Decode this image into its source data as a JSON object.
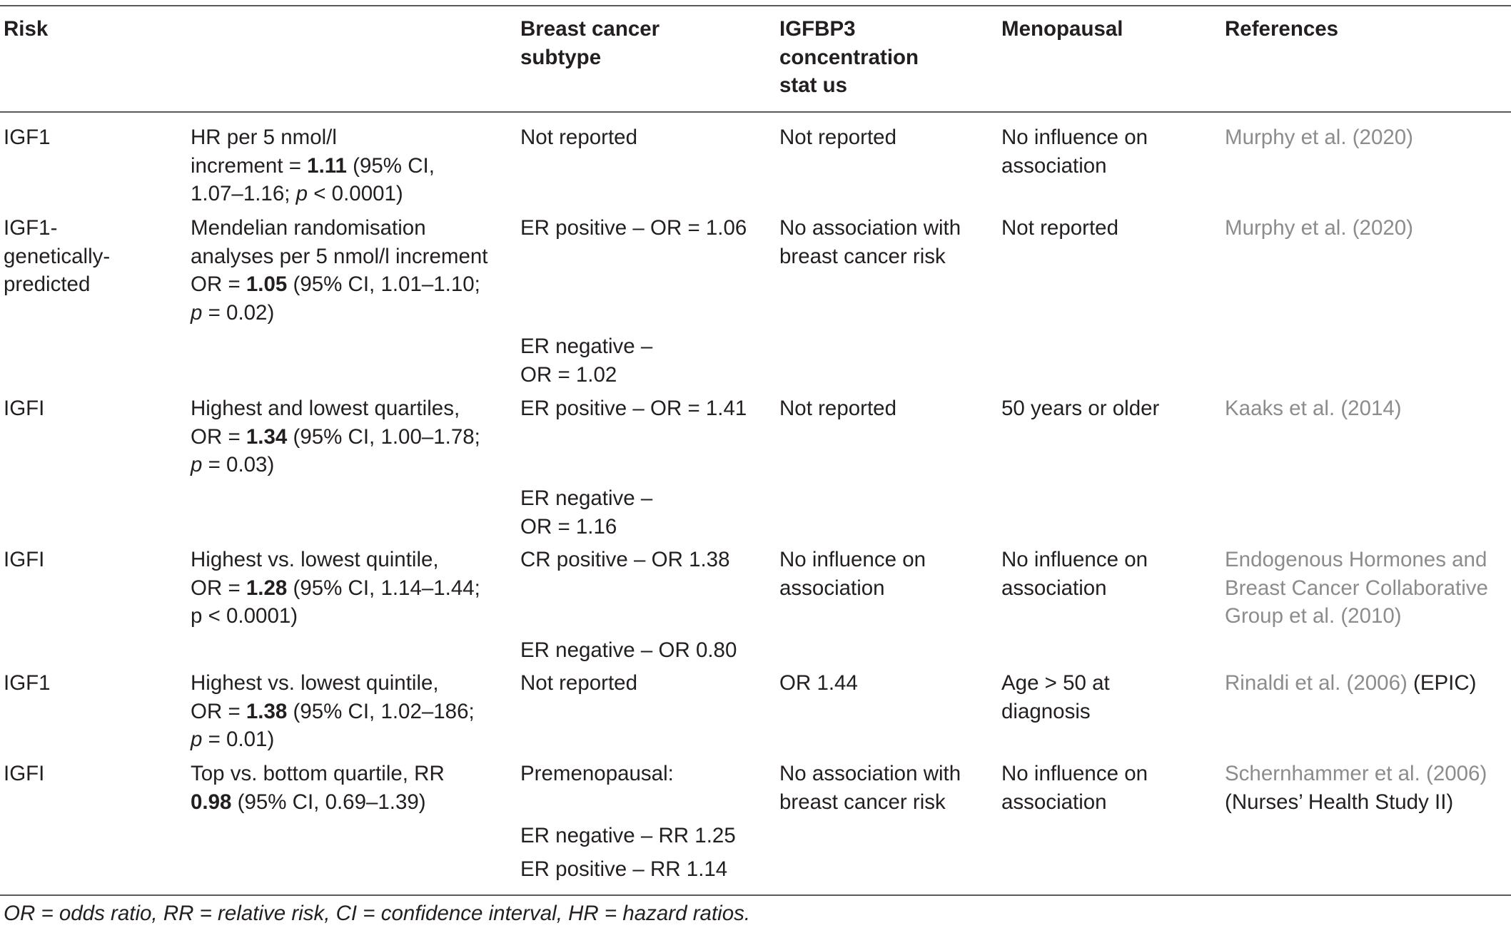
{
  "header": {
    "risk": [
      "Risk"
    ],
    "subtype": [
      "Breast cancer",
      "subtype"
    ],
    "igfbp3": [
      "IGFBP3",
      "concentration",
      "stat us"
    ],
    "menopausal": [
      "Menopausal"
    ],
    "references": [
      "References"
    ]
  },
  "rows": [
    {
      "risk": [
        "IGF1"
      ],
      "measure": [
        [
          "HR per 5 nmol/l",
          "",
          ""
        ],
        [
          "increment = ",
          "1.11",
          " (95% CI,"
        ],
        [
          "1.07–1.16; ",
          "p",
          " < 0.0001)"
        ]
      ],
      "subtype": [
        [
          "Not reported"
        ]
      ],
      "igfbp3": [
        "Not reported"
      ],
      "menopausal": [
        "No influence on",
        "association"
      ],
      "references": [
        [
          "Murphy et al. (2020)",
          ""
        ]
      ]
    },
    {
      "risk": [
        "IGF1-",
        "genetically-",
        "predicted"
      ],
      "measure": [
        [
          "Mendelian randomisation",
          "",
          ""
        ],
        [
          "analyses per 5 nmol/l increment",
          "",
          ""
        ],
        [
          "OR = ",
          "1.05",
          " (95% CI, 1.01–1.10;"
        ],
        [
          "",
          "p",
          " = 0.02)"
        ]
      ],
      "subtype": [
        [
          "ER positive – OR = 1.06"
        ],
        [
          "ER negative –",
          "OR = 1.02"
        ]
      ],
      "igfbp3": [
        "No association with",
        "breast cancer risk"
      ],
      "menopausal": [
        "Not reported"
      ],
      "references": [
        [
          "Murphy et al. (2020)",
          ""
        ]
      ]
    },
    {
      "risk": [
        "IGFI"
      ],
      "measure": [
        [
          "Highest and lowest quartiles,",
          "",
          ""
        ],
        [
          "OR = ",
          "1.34",
          " (95% CI, 1.00–1.78;"
        ],
        [
          "",
          "p",
          " = 0.03)"
        ]
      ],
      "subtype": [
        [
          "ER positive – OR = 1.41"
        ],
        [
          "ER negative –",
          "OR = 1.16"
        ]
      ],
      "igfbp3": [
        "Not reported"
      ],
      "menopausal": [
        "50 years or older"
      ],
      "references": [
        [
          "Kaaks et al. (2014)",
          ""
        ]
      ]
    },
    {
      "risk": [
        "IGFI"
      ],
      "measure": [
        [
          "Highest vs. lowest quintile,",
          "",
          ""
        ],
        [
          "OR = ",
          "1.28",
          " (95% CI, 1.14–1.44;"
        ],
        [
          "p < 0.0001)",
          "",
          ""
        ]
      ],
      "subtype": [
        [
          "CR positive – OR 1.38"
        ],
        [
          "ER negative – OR 0.80"
        ]
      ],
      "igfbp3": [
        "No influence on",
        "association"
      ],
      "menopausal": [
        "No influence on",
        "association"
      ],
      "references": [
        [
          "Endogenous Hormones and",
          ""
        ],
        [
          "Breast Cancer Collaborative",
          ""
        ],
        [
          "Group et al. (2010)",
          ""
        ]
      ]
    },
    {
      "risk": [
        "IGF1"
      ],
      "measure": [
        [
          "Highest vs. lowest quintile,",
          "",
          ""
        ],
        [
          "OR = ",
          "1.38",
          " (95% CI, 1.02–186;"
        ],
        [
          "",
          "p",
          " = 0.01)"
        ]
      ],
      "subtype": [
        [
          "Not reported"
        ]
      ],
      "igfbp3": [
        "OR 1.44"
      ],
      "menopausal": [
        "Age > 50 at",
        "diagnosis"
      ],
      "references": [
        [
          "Rinaldi et al. (2006)",
          " (EPIC)"
        ]
      ]
    },
    {
      "risk": [
        "IGFI"
      ],
      "measure": [
        [
          "Top vs. bottom quartile, RR",
          "",
          ""
        ],
        [
          "",
          "0.98",
          " (95% CI, 0.69–1.39)"
        ]
      ],
      "subtype": [
        [
          "Premenopausal:"
        ],
        [
          "ER negative – RR 1.25"
        ],
        [
          "ER positive – RR 1.14"
        ]
      ],
      "igfbp3": [
        "No association with",
        "breast cancer risk"
      ],
      "menopausal": [
        "No influence on",
        "association"
      ],
      "references": [
        [
          "Schernhammer et al. (2006)",
          ""
        ],
        [
          "",
          "(Nurses’ Health Study II)"
        ]
      ]
    }
  ],
  "footnote": "OR = odds ratio, RR = relative risk, CI = confidence interval, HR = hazard ratios."
}
